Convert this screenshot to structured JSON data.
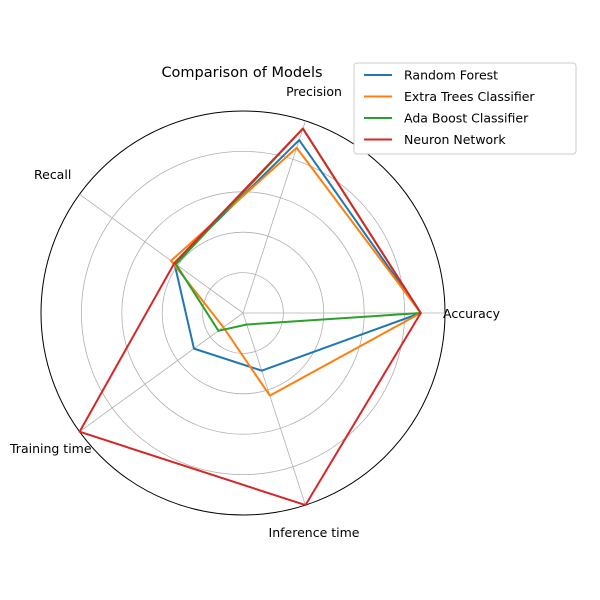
{
  "chart_data": {
    "type": "radar",
    "title": "Comparison of Models",
    "axes": [
      "Accuracy",
      "Precision",
      "Recall",
      "Training time",
      "Inference time"
    ],
    "rlim": [
      0,
      1
    ],
    "grid": true,
    "legend_position": "top-right, outside plot",
    "series": [
      {
        "name": "Random Forest",
        "color": "#1f77b4",
        "values": [
          0.88,
          0.9,
          0.42,
          0.3,
          0.3
        ]
      },
      {
        "name": "Extra Trees Classifier",
        "color": "#ff7f0e",
        "values": [
          0.88,
          0.86,
          0.44,
          0.12,
          0.43
        ]
      },
      {
        "name": "Ada Boost Classifier",
        "color": "#2ca02c",
        "values": [
          0.88,
          0.96,
          0.41,
          0.15,
          0.06
        ]
      },
      {
        "name": "Neuron Network",
        "color": "#d62728",
        "values": [
          0.88,
          0.96,
          0.42,
          1.0,
          1.0
        ]
      }
    ]
  }
}
